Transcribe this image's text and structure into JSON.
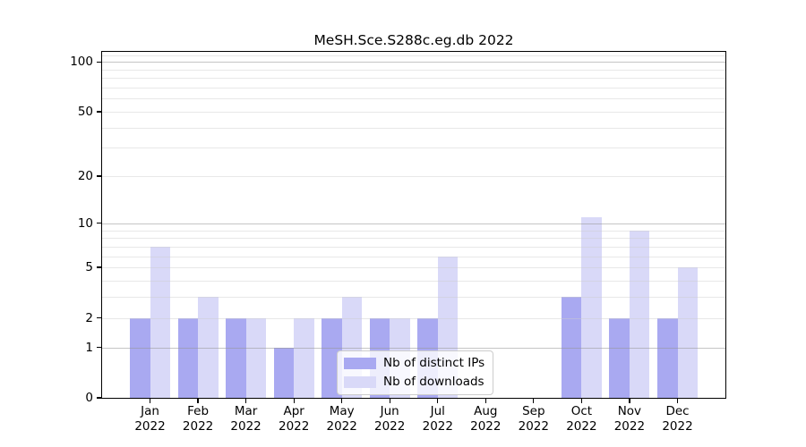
{
  "figure": {
    "background": "#ffffff",
    "spine_color": "#000000"
  },
  "chart_data": {
    "type": "bar",
    "title": "MeSH.Sce.S288c.eg.db 2022",
    "xlabel": "",
    "ylabel": "",
    "categories": [
      "Jan 2022",
      "Feb 2022",
      "Mar 2022",
      "Apr 2022",
      "May 2022",
      "Jun 2022",
      "Jul 2022",
      "Aug 2022",
      "Sep 2022",
      "Oct 2022",
      "Nov 2022",
      "Dec 2022"
    ],
    "x_tick_months": [
      "Jan",
      "Feb",
      "Mar",
      "Apr",
      "May",
      "Jun",
      "Jul",
      "Aug",
      "Sep",
      "Oct",
      "Nov",
      "Dec"
    ],
    "x_tick_year": "2022",
    "series": [
      {
        "name": "Nb of distinct IPs",
        "color": "#a9a9f1",
        "values": [
          2,
          2,
          2,
          1,
          2,
          2,
          2,
          0,
          0,
          3,
          2,
          2
        ]
      },
      {
        "name": "Nb of downloads",
        "color": "#d9d9f8",
        "values": [
          7,
          3,
          2,
          2,
          3,
          2,
          6,
          0,
          0,
          11,
          9,
          5
        ]
      }
    ],
    "y_axis": {
      "scale": "log10(value+1)",
      "ticks": [
        0,
        1,
        2,
        5,
        10,
        20,
        50,
        100
      ],
      "max_value": 115,
      "major_gridlines": [
        1,
        10,
        100
      ],
      "minor_gridlines": [
        2,
        3,
        4,
        5,
        6,
        7,
        8,
        9,
        20,
        30,
        40,
        50,
        60,
        70,
        80,
        90,
        110
      ]
    },
    "grid": true,
    "legend": {
      "position": "lower center",
      "entries": [
        "Nb of distinct IPs",
        "Nb of downloads"
      ]
    }
  }
}
